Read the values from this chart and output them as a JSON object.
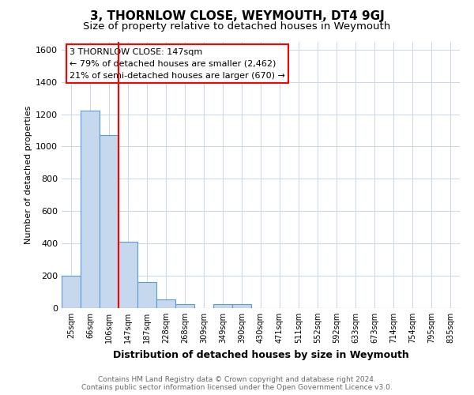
{
  "title": "3, THORNLOW CLOSE, WEYMOUTH, DT4 9GJ",
  "subtitle": "Size of property relative to detached houses in Weymouth",
  "xlabel": "Distribution of detached houses by size in Weymouth",
  "ylabel": "Number of detached properties",
  "categories": [
    "25sqm",
    "66sqm",
    "106sqm",
    "147sqm",
    "187sqm",
    "228sqm",
    "268sqm",
    "309sqm",
    "349sqm",
    "390sqm",
    "430sqm",
    "471sqm",
    "511sqm",
    "552sqm",
    "592sqm",
    "633sqm",
    "673sqm",
    "714sqm",
    "754sqm",
    "795sqm",
    "835sqm"
  ],
  "values": [
    200,
    1220,
    1070,
    410,
    160,
    55,
    25,
    0,
    25,
    25,
    0,
    0,
    0,
    0,
    0,
    0,
    0,
    0,
    0,
    0,
    0
  ],
  "bar_color": "#c5d8ed",
  "bar_edge_color": "#5b9bd5",
  "red_line_index": 2.5,
  "ylim": [
    0,
    1650
  ],
  "yticks": [
    0,
    200,
    400,
    600,
    800,
    1000,
    1200,
    1400,
    1600
  ],
  "annotation_text": "3 THORNLOW CLOSE: 147sqm\n← 79% of detached houses are smaller (2,462)\n21% of semi-detached houses are larger (670) →",
  "footer_line1": "Contains HM Land Registry data © Crown copyright and database right 2024.",
  "footer_line2": "Contains public sector information licensed under the Open Government Licence v3.0.",
  "background_color": "#ffffff",
  "grid_color": "#c8d8e8",
  "title_fontsize": 11,
  "subtitle_fontsize": 9.5,
  "ylabel_fontsize": 8,
  "xlabel_fontsize": 9,
  "footer_fontsize": 6.5,
  "annot_fontsize": 8,
  "tick_fontsize": 7
}
